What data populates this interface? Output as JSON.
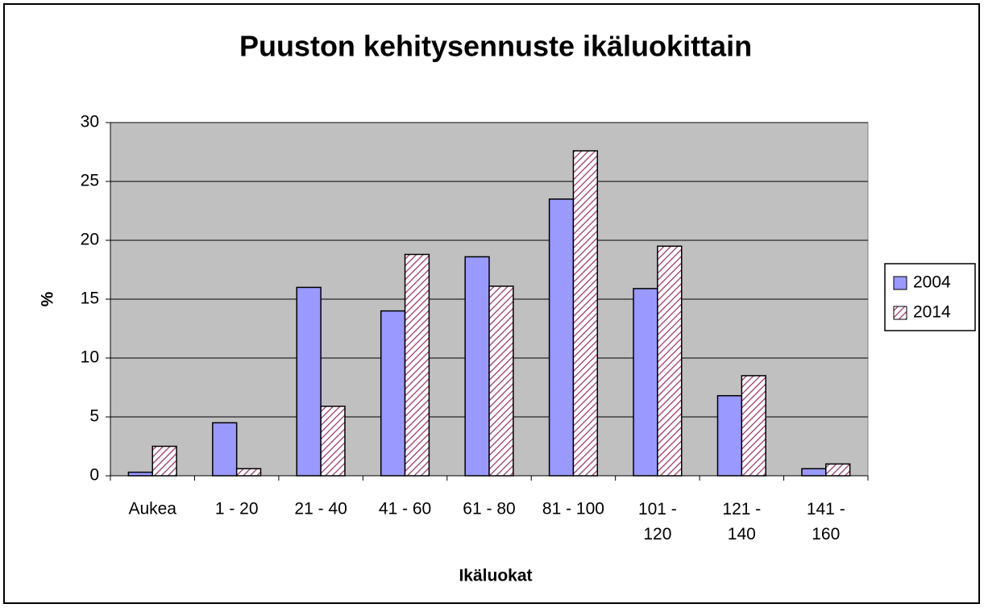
{
  "chart_data": {
    "type": "bar",
    "title": "Puuston kehitysennuste ikäluokittain",
    "x_label": "Ikäluokat",
    "y_label": "%",
    "categories": [
      "Aukea",
      "1 - 20",
      "21 - 40",
      "41 - 60",
      "61 - 80",
      "81 - 100",
      "101 - 120",
      "121 - 140",
      "141 - 160"
    ],
    "series": [
      {
        "name": "2004",
        "color": "#9999ff",
        "values": [
          0.3,
          4.5,
          16.0,
          14.0,
          18.6,
          23.5,
          15.9,
          6.8,
          0.6
        ]
      },
      {
        "name": "2014",
        "color": "#993366",
        "values": [
          2.5,
          0.6,
          5.9,
          18.8,
          16.1,
          27.6,
          19.5,
          8.5,
          1.0
        ]
      }
    ],
    "ylim": [
      0,
      30
    ],
    "yticks": [
      0,
      5,
      10,
      15,
      20,
      25,
      30
    ],
    "grid": true,
    "legend": "right"
  }
}
